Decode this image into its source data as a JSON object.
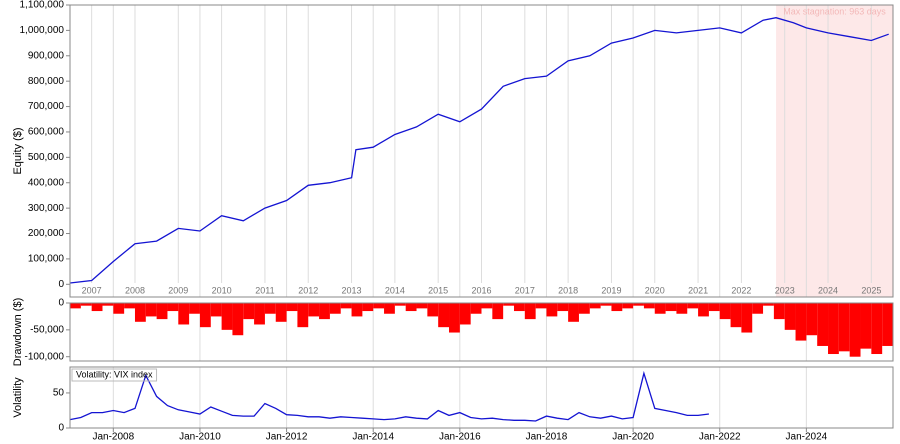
{
  "chart_data": [
    {
      "type": "line",
      "ylabel": "Equity ($)",
      "color": "#1414d2",
      "grid": true,
      "xlim": [
        2007,
        2026
      ],
      "ylim": [
        -50000,
        1100000
      ],
      "x": [
        2007,
        2007.5,
        2008,
        2008.5,
        2009,
        2009.5,
        2010,
        2010.5,
        2011,
        2011.5,
        2012,
        2012.5,
        2013,
        2013.5,
        2013.6,
        2014,
        2014.5,
        2015,
        2015.5,
        2016,
        2016.5,
        2017,
        2017.5,
        2018,
        2018.5,
        2019,
        2019.5,
        2020,
        2020.5,
        2021,
        2021.5,
        2022,
        2022.5,
        2023,
        2023.3,
        2023.7,
        2024,
        2024.5,
        2025,
        2025.5,
        2025.9
      ],
      "values": [
        5000,
        15000,
        90000,
        160000,
        170000,
        220000,
        210000,
        270000,
        250000,
        300000,
        330000,
        390000,
        400000,
        420000,
        530000,
        540000,
        590000,
        620000,
        670000,
        640000,
        690000,
        780000,
        810000,
        820000,
        880000,
        900000,
        950000,
        970000,
        1000000,
        990000,
        1000000,
        1010000,
        990000,
        1040000,
        1050000,
        1030000,
        1010000,
        990000,
        975000,
        960000,
        985000
      ],
      "yticks": [
        {
          "value": 0,
          "label": "0"
        },
        {
          "value": 100000,
          "label": "100,000"
        },
        {
          "value": 200000,
          "label": "200,000"
        },
        {
          "value": 300000,
          "label": "300,000"
        },
        {
          "value": 400000,
          "label": "400,000"
        },
        {
          "value": 500000,
          "label": "500,000"
        },
        {
          "value": 600000,
          "label": "600,000"
        },
        {
          "value": 700000,
          "label": "700,000"
        },
        {
          "value": 800000,
          "label": "800,000"
        },
        {
          "value": 900000,
          "label": "900,000"
        },
        {
          "value": 1000000,
          "label": "1,000,000"
        },
        {
          "value": 1100000,
          "label": "1,100,000"
        }
      ],
      "xticks": [
        {
          "value": 2007.5,
          "label": "2007"
        },
        {
          "value": 2008.5,
          "label": "2008"
        },
        {
          "value": 2009.5,
          "label": "2009"
        },
        {
          "value": 2010.5,
          "label": "2010"
        },
        {
          "value": 2011.5,
          "label": "2011"
        },
        {
          "value": 2012.5,
          "label": "2012"
        },
        {
          "value": 2013.5,
          "label": "2013"
        },
        {
          "value": 2014.5,
          "label": "2014"
        },
        {
          "value": 2015.5,
          "label": "2015"
        },
        {
          "value": 2016.5,
          "label": "2016"
        },
        {
          "value": 2017.5,
          "label": "2017"
        },
        {
          "value": 2018.5,
          "label": "2018"
        },
        {
          "value": 2019.5,
          "label": "2019"
        },
        {
          "value": 2020.5,
          "label": "2020"
        },
        {
          "value": 2021.5,
          "label": "2021"
        },
        {
          "value": 2022.5,
          "label": "2022"
        },
        {
          "value": 2023.5,
          "label": "2023"
        },
        {
          "value": 2024.5,
          "label": "2024"
        },
        {
          "value": 2025.5,
          "label": "2025"
        }
      ],
      "shade": [
        2023.3,
        2026
      ],
      "annotation": "Max stagnation: 963 days"
    },
    {
      "type": "bar",
      "ylabel": "Drawdown ($)",
      "color": "#ff0000",
      "xlim": [
        2007,
        2026
      ],
      "ylim": [
        -108000,
        0
      ],
      "x": [
        2007,
        2007.25,
        2007.5,
        2007.75,
        2008,
        2008.25,
        2008.5,
        2008.75,
        2009,
        2009.25,
        2009.5,
        2009.75,
        2010,
        2010.25,
        2010.5,
        2010.75,
        2011,
        2011.25,
        2011.5,
        2011.75,
        2012,
        2012.25,
        2012.5,
        2012.75,
        2013,
        2013.25,
        2013.5,
        2013.75,
        2014,
        2014.25,
        2014.5,
        2014.75,
        2015,
        2015.25,
        2015.5,
        2015.75,
        2016,
        2016.25,
        2016.5,
        2016.75,
        2017,
        2017.25,
        2017.5,
        2017.75,
        2018,
        2018.25,
        2018.5,
        2018.75,
        2019,
        2019.25,
        2019.5,
        2019.75,
        2020,
        2020.25,
        2020.5,
        2020.75,
        2021,
        2021.25,
        2021.5,
        2021.75,
        2022,
        2022.25,
        2022.5,
        2022.75,
        2023,
        2023.25,
        2023.5,
        2023.75,
        2024,
        2024.25,
        2024.5,
        2024.75,
        2025,
        2025.25,
        2025.5,
        2025.75
      ],
      "values": [
        -10000,
        -5000,
        -15000,
        -5000,
        -20000,
        -10000,
        -35000,
        -25000,
        -30000,
        -15000,
        -40000,
        -20000,
        -45000,
        -25000,
        -50000,
        -60000,
        -30000,
        -40000,
        -20000,
        -35000,
        -15000,
        -45000,
        -25000,
        -30000,
        -20000,
        -10000,
        -25000,
        -15000,
        -10000,
        -20000,
        -5000,
        -15000,
        -10000,
        -25000,
        -45000,
        -55000,
        -40000,
        -20000,
        -10000,
        -30000,
        -5000,
        -15000,
        -30000,
        -10000,
        -25000,
        -15000,
        -35000,
        -20000,
        -10000,
        -5000,
        -15000,
        -10000,
        -5000,
        -10000,
        -20000,
        -15000,
        -20000,
        -10000,
        -25000,
        -15000,
        -30000,
        -45000,
        -55000,
        -20000,
        -5000,
        -30000,
        -50000,
        -70000,
        -60000,
        -80000,
        -95000,
        -90000,
        -100000,
        -85000,
        -95000,
        -80000
      ],
      "yticks": [
        {
          "value": 0,
          "label": "0"
        },
        {
          "value": -50000,
          "label": "-50,000"
        },
        {
          "value": -100000,
          "label": "-100,000"
        }
      ]
    },
    {
      "type": "line",
      "ylabel": "Volatility",
      "xlim": [
        2007,
        2026
      ],
      "ylim": [
        0,
        87
      ],
      "x": [
        2007,
        2007.25,
        2007.5,
        2007.75,
        2008,
        2008.25,
        2008.5,
        2008.75,
        2009,
        2009.25,
        2009.5,
        2009.75,
        2010,
        2010.25,
        2010.5,
        2010.75,
        2011,
        2011.25,
        2011.5,
        2011.75,
        2012,
        2012.25,
        2012.5,
        2012.75,
        2013,
        2013.25,
        2013.5,
        2013.75,
        2014,
        2014.25,
        2014.5,
        2014.75,
        2015,
        2015.25,
        2015.5,
        2015.75,
        2016,
        2016.25,
        2016.5,
        2016.75,
        2017,
        2017.25,
        2017.5,
        2017.75,
        2018,
        2018.25,
        2018.5,
        2018.75,
        2019,
        2019.25,
        2019.5,
        2019.75,
        2020,
        2020.25,
        2020.5,
        2020.75,
        2021,
        2021.25,
        2021.5,
        2021.75
      ],
      "series": [
        {
          "name": "Volatility: VIX index",
          "color": "#1414d2",
          "values": [
            12,
            15,
            22,
            22,
            25,
            22,
            28,
            75,
            45,
            32,
            26,
            23,
            20,
            30,
            24,
            18,
            17,
            17,
            35,
            28,
            19,
            18,
            16,
            16,
            14,
            16,
            15,
            14,
            13,
            12,
            13,
            16,
            14,
            13,
            25,
            18,
            22,
            15,
            13,
            14,
            12,
            11,
            11,
            10,
            17,
            14,
            12,
            22,
            16,
            14,
            17,
            13,
            15,
            78,
            28,
            25,
            22,
            18,
            18,
            20
          ]
        }
      ],
      "yticks": [
        0,
        50
      ],
      "xticks": [
        {
          "value": 2008,
          "label": "Jan-2008"
        },
        {
          "value": 2010,
          "label": "Jan-2010"
        },
        {
          "value": 2012,
          "label": "Jan-2012"
        },
        {
          "value": 2014,
          "label": "Jan-2014"
        },
        {
          "value": 2016,
          "label": "Jan-2016"
        },
        {
          "value": 2018,
          "label": "Jan-2018"
        },
        {
          "value": 2020,
          "label": "Jan-2020"
        },
        {
          "value": 2022,
          "label": "Jan-2022"
        },
        {
          "value": 2024,
          "label": "Jan-2024"
        }
      ]
    }
  ]
}
